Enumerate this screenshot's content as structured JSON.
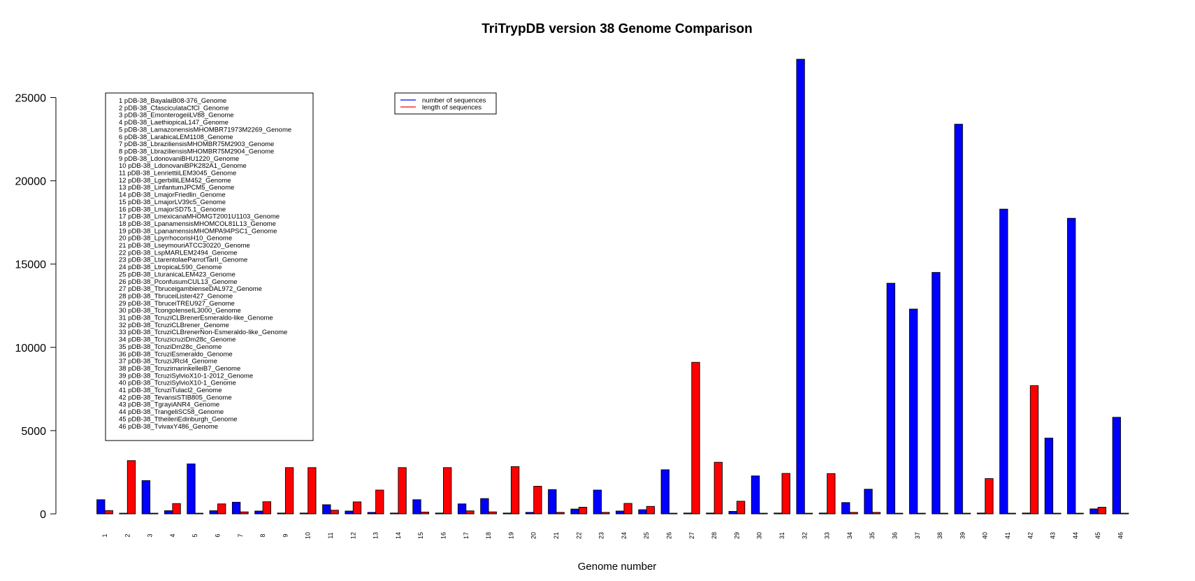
{
  "chart_data": {
    "type": "bar",
    "title": "TriTrypDB version 38 Genome Comparison",
    "xlabel": "Genome number",
    "ylabel": "",
    "ylim": [
      0,
      27500
    ],
    "yticks": [
      0,
      5000,
      10000,
      15000,
      20000,
      25000
    ],
    "grid": false,
    "categories": [
      "1",
      "2",
      "3",
      "4",
      "5",
      "6",
      "7",
      "8",
      "9",
      "10",
      "11",
      "12",
      "13",
      "14",
      "15",
      "16",
      "17",
      "18",
      "19",
      "20",
      "21",
      "22",
      "23",
      "24",
      "25",
      "26",
      "27",
      "28",
      "29",
      "30",
      "31",
      "32",
      "33",
      "34",
      "35",
      "36",
      "37",
      "38",
      "39",
      "40",
      "41",
      "42",
      "43",
      "44",
      "45",
      "46"
    ],
    "series": [
      {
        "name": "number of sequences",
        "color": "#0000ff",
        "values": [
          850,
          40,
          2000,
          190,
          3000,
          190,
          700,
          170,
          50,
          50,
          550,
          170,
          90,
          50,
          850,
          50,
          600,
          920,
          50,
          90,
          1460,
          290,
          1430,
          170,
          250,
          2650,
          50,
          50,
          150,
          2280,
          50,
          27300,
          50,
          680,
          1480,
          13850,
          12300,
          14500,
          23400,
          50,
          18300,
          50,
          4550,
          17750,
          300,
          5800
        ]
      },
      {
        "name": "length of sequences",
        "color": "#ff0000",
        "values": [
          200,
          3200,
          40,
          620,
          40,
          600,
          120,
          730,
          2780,
          2780,
          220,
          720,
          1430,
          2780,
          110,
          2780,
          180,
          120,
          2840,
          1660,
          90,
          400,
          90,
          630,
          450,
          40,
          9100,
          3100,
          760,
          40,
          2430,
          40,
          2420,
          90,
          90,
          40,
          40,
          40,
          40,
          2120,
          40,
          7700,
          40,
          40,
          400,
          40
        ]
      }
    ],
    "legend": {
      "placement": "top-center",
      "entries": [
        "number of sequences",
        "length of sequences"
      ]
    },
    "genome_legend": {
      "placement": "top-left",
      "entries": [
        "1 pDB-38_BayalaiB08-376_Genome",
        "2 pDB-38_CfasciculataCfCl_Genome",
        "3 pDB-38_EmonterogeiiLV88_Genome",
        "4 pDB-38_LaethiopicaL147_Genome",
        "5 pDB-38_LamazonensisMHOMBR71973M2269_Genome",
        "6 pDB-38_LarabicaLEM1108_Genome",
        "7 pDB-38_LbraziliensisMHOMBR75M2903_Genome",
        "8 pDB-38_LbraziliensisMHOMBR75M2904_Genome",
        "9 pDB-38_LdonovaniBHU1220_Genome",
        "10 pDB-38_LdonovaniBPK282A1_Genome",
        "11 pDB-38_LenriettiiLEM3045_Genome",
        "12 pDB-38_LgerbilliLEM452_Genome",
        "13 pDB-38_LinfantumJPCM5_Genome",
        "14 pDB-38_LmajorFriedlin_Genome",
        "15 pDB-38_LmajorLV39c5_Genome",
        "16 pDB-38_LmajorSD75.1_Genome",
        "17 pDB-38_LmexicanaMHOMGT2001U1103_Genome",
        "18 pDB-38_LpanamensisMHOMCOL81L13_Genome",
        "19 pDB-38_LpanamensisMHOMPA94PSC1_Genome",
        "20 pDB-38_LpyrrhocorisH10_Genome",
        "21 pDB-38_LseymouriATCC30220_Genome",
        "22 pDB-38_LspMARLEM2494_Genome",
        "23 pDB-38_LtarentolaeParrotTarII_Genome",
        "24 pDB-38_LtropicaL590_Genome",
        "25 pDB-38_LturanicaLEM423_Genome",
        "26 pDB-38_PconfusumCUL13_Genome",
        "27 pDB-38_TbruceigambienseDAL972_Genome",
        "28 pDB-38_TbruceiLister427_Genome",
        "29 pDB-38_TbruceiTREU927_Genome",
        "30 pDB-38_TcongolenseIL3000_Genome",
        "31 pDB-38_TcruziCLBrenerEsmeraldo-like_Genome",
        "32 pDB-38_TcruziCLBrener_Genome",
        "33 pDB-38_TcruziCLBrenerNon-Esmeraldo-like_Genome",
        "34 pDB-38_TcruzicruziDm28c_Genome",
        "35 pDB-38_TcruziDm28c_Genome",
        "36 pDB-38_TcruziEsmeraldo_Genome",
        "37 pDB-38_TcruziJRcl4_Genome",
        "38 pDB-38_TcruzimarinkelleiB7_Genome",
        "39 pDB-38_TcruziSylvioX10-1-2012_Genome",
        "40 pDB-38_TcruziSylvioX10-1_Genome",
        "41 pDB-38_TcruziTulacl2_Genome",
        "42 pDB-38_TevansiSTIB805_Genome",
        "43 pDB-38_TgrayiANR4_Genome",
        "44 pDB-38_TrangeliSC58_Genome",
        "45 pDB-38_TtheileriEdinburgh_Genome",
        "46 pDB-38_TvivaxY486_Genome"
      ]
    }
  }
}
